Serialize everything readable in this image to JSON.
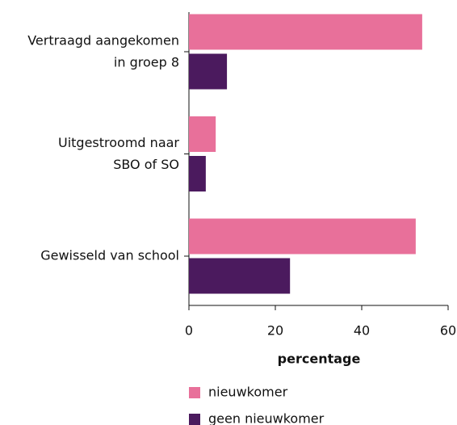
{
  "chart_data": {
    "type": "barh",
    "categories": [
      "Vertraagd aangekomen\nin groep 8",
      "Uitgestroomd naar\nSBO of SO",
      "Gewisseld van school"
    ],
    "series": [
      {
        "name": "nieuwkomer",
        "color": "#e8709a",
        "values": [
          54,
          6.2,
          52.5
        ]
      },
      {
        "name": "geen nieuwkomer",
        "color": "#4b1a5e",
        "values": [
          8.8,
          3.9,
          23.4
        ]
      }
    ],
    "xlabel": "percentage",
    "xlim": [
      0,
      60
    ],
    "xticks": [
      0,
      20,
      40,
      60
    ]
  }
}
